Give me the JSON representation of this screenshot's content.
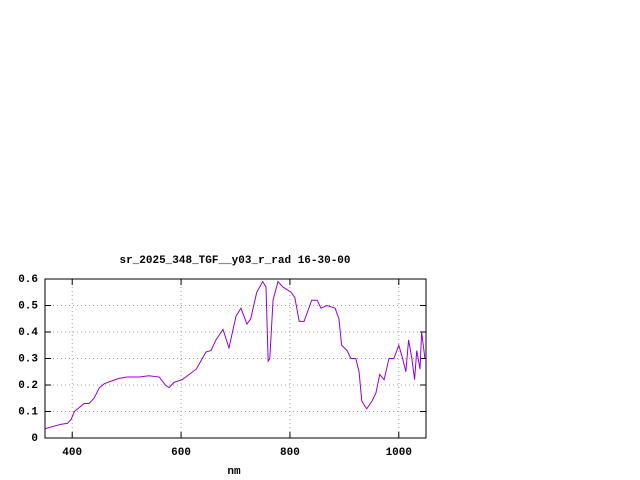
{
  "chart_data": {
    "type": "line",
    "title": "sr_2025_348_TGF__y03_r_rad 16-30-00",
    "x_label": "nm",
    "xlim": [
      350,
      1050
    ],
    "xticks": [
      400,
      600,
      800,
      1000
    ],
    "ylim": [
      0,
      0.6
    ],
    "yticks": [
      0,
      0.1,
      0.2,
      0.3,
      0.4,
      0.5,
      0.6
    ],
    "grid": true,
    "series": [
      {
        "color": "#9400d3",
        "x": [
          350,
          367,
          380,
          391,
          398,
          404,
          413,
          422,
          431,
          440,
          450,
          459,
          472,
          486,
          501,
          523,
          541,
          560,
          571,
          578,
          587,
          602,
          615,
          628,
          639,
          646,
          655,
          664,
          677,
          688,
          701,
          710,
          721,
          728,
          739,
          750,
          756,
          760,
          763,
          769,
          778,
          787,
          802,
          809,
          817,
          826,
          840,
          850,
          857,
          868,
          883,
          890,
          895,
          905,
          912,
          921,
          927,
          932,
          941,
          951,
          958,
          965,
          973,
          982,
          991,
          1000,
          1007,
          1013,
          1018,
          1024,
          1029,
          1033,
          1039,
          1042,
          1048
        ],
        "values": [
          0.035,
          0.045,
          0.052,
          0.055,
          0.07,
          0.1,
          0.115,
          0.13,
          0.13,
          0.15,
          0.19,
          0.205,
          0.215,
          0.225,
          0.23,
          0.23,
          0.235,
          0.23,
          0.2,
          0.19,
          0.21,
          0.22,
          0.24,
          0.26,
          0.3,
          0.325,
          0.33,
          0.37,
          0.41,
          0.34,
          0.46,
          0.49,
          0.43,
          0.45,
          0.55,
          0.59,
          0.57,
          0.29,
          0.3,
          0.52,
          0.59,
          0.57,
          0.55,
          0.53,
          0.44,
          0.44,
          0.52,
          0.52,
          0.49,
          0.5,
          0.49,
          0.45,
          0.35,
          0.33,
          0.3,
          0.3,
          0.25,
          0.14,
          0.11,
          0.14,
          0.17,
          0.24,
          0.22,
          0.3,
          0.3,
          0.35,
          0.3,
          0.25,
          0.37,
          0.3,
          0.22,
          0.33,
          0.26,
          0.4,
          0.3
        ]
      }
    ]
  }
}
